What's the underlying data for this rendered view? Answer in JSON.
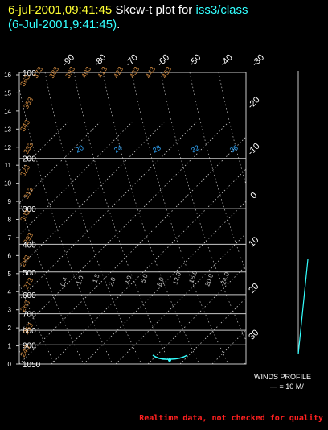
{
  "header": {
    "date_time": "6-jul-2001,09:41:45",
    "title_text": "Skew-t plot for",
    "station": "iss3/class",
    "subtitle": "(6-Jul-2001,9:41:45)",
    "subtitle_dot": "."
  },
  "footer": {
    "note": "Realtime data, not checked for quality"
  },
  "colors": {
    "background": "#000000",
    "grid": "#c8c8c8",
    "date": "#ffff33",
    "station": "#33ffff",
    "theta_labels": "#d08a40",
    "mixing_labels": "#33aaff",
    "profile": "#33ffff",
    "warning": "#ff2020"
  },
  "chart_data": {
    "type": "line",
    "title": "Skew-t plot for iss3/class",
    "pressure_ticks": [
      "100",
      "200",
      "300",
      "400",
      "500",
      "600",
      "700",
      "800",
      "900",
      "1050"
    ],
    "height_ticks": [
      "16",
      "15",
      "14",
      "13",
      "12",
      "11",
      "10",
      "9",
      "8",
      "7",
      "6",
      "5",
      "4",
      "3",
      "2",
      "1",
      "0"
    ],
    "temperature_ticks_top": [
      "-90",
      "-80",
      "-70",
      "-60",
      "-50",
      "-40",
      "-30"
    ],
    "temperature_ticks_right": [
      "-20",
      "-10",
      "0",
      "10",
      "20",
      "30"
    ],
    "theta_labels": [
      "243",
      "253",
      "263",
      "273",
      "283",
      "293",
      "303",
      "313",
      "323",
      "333",
      "343",
      "353",
      "363",
      "373",
      "383",
      "393",
      "403",
      "413",
      "423",
      "433",
      "443",
      "453"
    ],
    "mixing_ratio_labels": [
      "20",
      "24",
      "28",
      "32",
      "36"
    ],
    "dry_bulb_labels": [
      "0.4",
      "1.0",
      "1.5",
      "2.0",
      "3.0",
      "5.0",
      "8.0",
      "12.0",
      "16.0",
      "20.0",
      "24.0"
    ],
    "wind_profile": {
      "label": "WINDS PROFILE",
      "scale": "— = 10 M/"
    },
    "xlim": [
      -90,
      -30
    ],
    "ylim": [
      1050,
      100
    ],
    "grid": true,
    "legend": "none"
  }
}
